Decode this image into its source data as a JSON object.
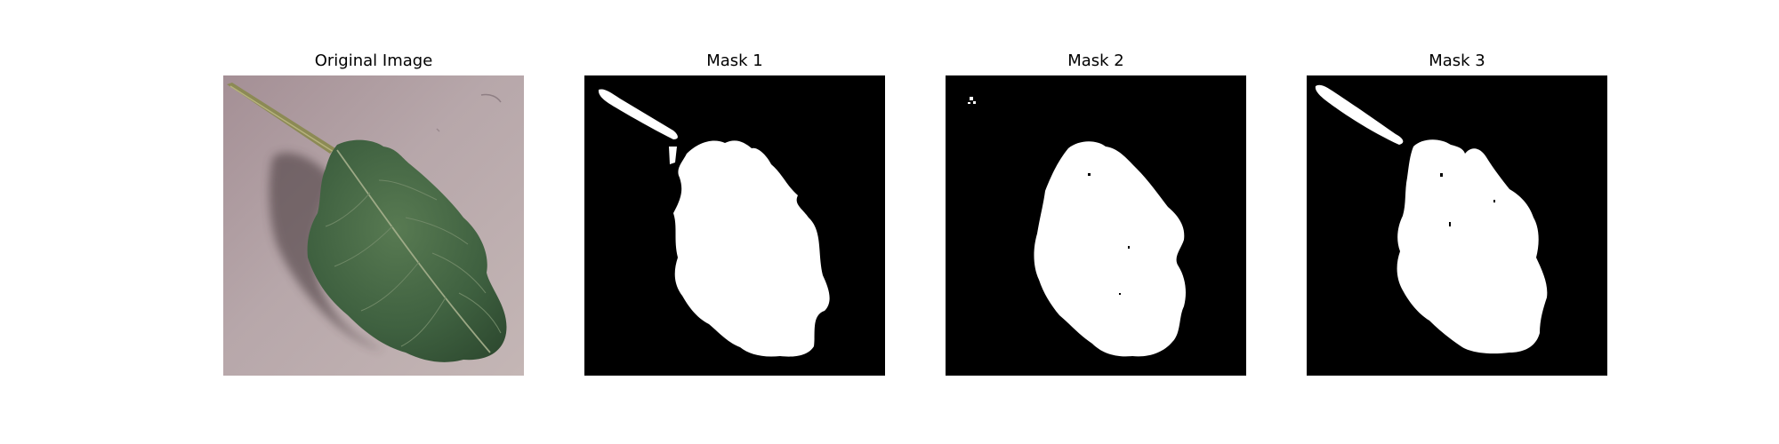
{
  "figure": {
    "panels": [
      {
        "title": "Original Image"
      },
      {
        "title": "Mask 1"
      },
      {
        "title": "Mask 2"
      },
      {
        "title": "Mask 3"
      }
    ]
  },
  "colors": {
    "background": "#ffffff",
    "mask_foreground": "#ffffff",
    "mask_background": "#000000",
    "leaf": "#3d5c38",
    "surface": "#b8a8aa"
  }
}
